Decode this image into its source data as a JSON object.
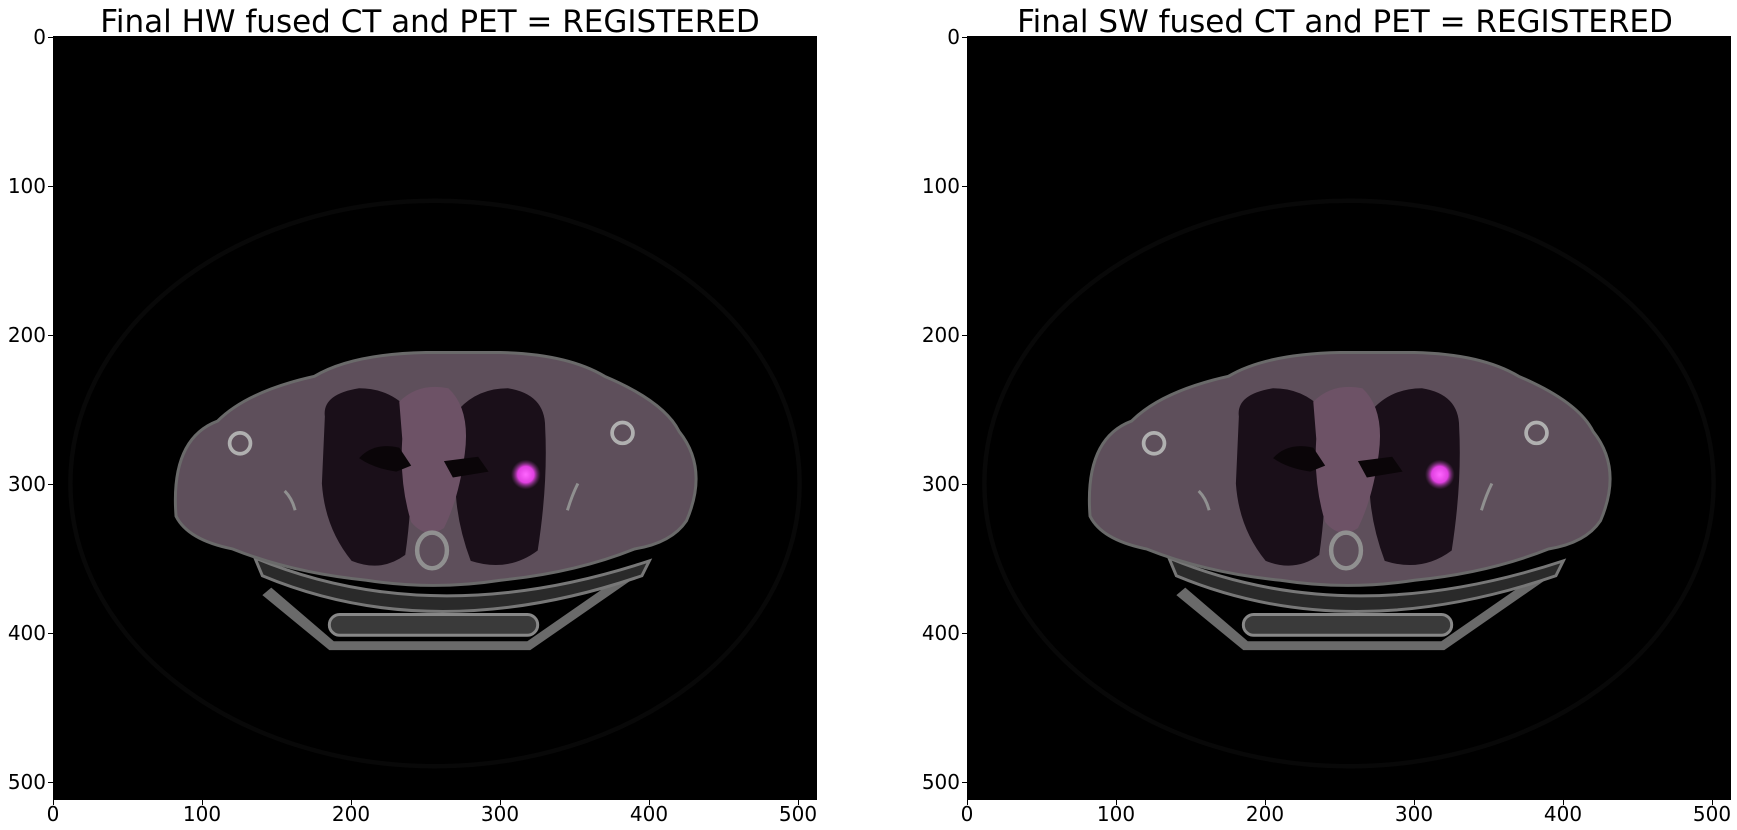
{
  "figure": {
    "panels": [
      {
        "title": "Final HW fused CT and PET = REGISTERED",
        "xticks": [
          "0",
          "100",
          "200",
          "300",
          "400",
          "500"
        ],
        "yticks": [
          "0",
          "100",
          "200",
          "300",
          "400",
          "500"
        ]
      },
      {
        "title": "Final SW fused CT and PET = REGISTERED",
        "xticks": [
          "0",
          "100",
          "200",
          "300",
          "400",
          "500"
        ],
        "yticks": [
          "0",
          "100",
          "200",
          "300",
          "400",
          "500"
        ]
      }
    ],
    "image_extent": [
      0,
      512
    ],
    "colors": {
      "background": "#000000",
      "ct_tissue": "#5e4f5b",
      "pet_hotspot": "#e040e0"
    }
  }
}
